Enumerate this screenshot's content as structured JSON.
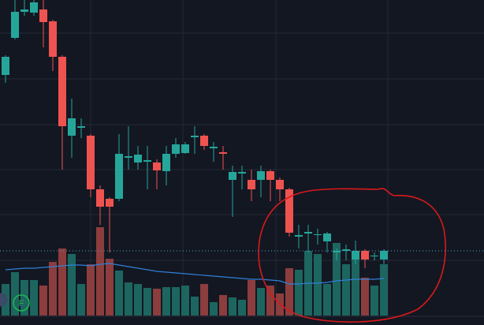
{
  "chart_data": {
    "type": "candlestick",
    "open": [
      305,
      352,
      385,
      384,
      388,
      373,
      328,
      228,
      238,
      228,
      160,
      148,
      148,
      200,
      194,
      195,
      194,
      183,
      205,
      206,
      226,
      228,
      212,
      207,
      172,
      180,
      172,
      172,
      183,
      172,
      160,
      100,
      104,
      102,
      94,
      80,
      82,
      71,
      82,
      75,
      71
    ],
    "high": [
      330,
      400,
      400,
      400,
      400,
      375,
      330,
      275,
      250,
      230,
      165,
      150,
      230,
      240,
      215,
      215,
      198,
      215,
      225,
      220,
      240,
      230,
      220,
      215,
      190,
      190,
      185,
      190,
      185,
      175,
      162,
      115,
      115,
      110,
      106,
      85,
      90,
      95,
      84,
      80,
      84
    ],
    "low": [
      295,
      350,
      380,
      380,
      340,
      310,
      185,
      200,
      225,
      150,
      115,
      80,
      145,
      185,
      185,
      160,
      160,
      165,
      200,
      205,
      205,
      210,
      195,
      185,
      125,
      160,
      145,
      150,
      145,
      145,
      100,
      85,
      80,
      90,
      80,
      70,
      70,
      65,
      60,
      70,
      65
    ],
    "close": [
      328,
      385,
      388,
      397,
      372,
      328,
      240,
      250,
      240,
      160,
      138,
      138,
      205,
      202,
      204,
      197,
      184,
      205,
      217,
      217,
      228,
      215,
      214,
      205,
      182,
      182,
      160,
      183,
      172,
      160,
      105,
      102,
      106,
      103,
      104,
      82,
      84,
      82,
      71,
      76,
      82
    ],
    "volume": [
      40,
      55,
      45,
      45,
      38,
      68,
      85,
      78,
      40,
      65,
      112,
      72,
      57,
      42,
      40,
      35,
      34,
      36,
      36,
      38,
      24,
      40,
      17,
      26,
      23,
      20,
      45,
      35,
      38,
      28,
      60,
      58,
      82,
      78,
      40,
      92,
      65,
      80,
      48,
      38,
      65
    ],
    "volume_ma": [
      58,
      59,
      60,
      60,
      61,
      62,
      63,
      64,
      64,
      63,
      65,
      66,
      64,
      62,
      60,
      58,
      56,
      55,
      54,
      53,
      52,
      51,
      50,
      49,
      48,
      47,
      46,
      46,
      45,
      44,
      40,
      40,
      41,
      41,
      42,
      44,
      45,
      46,
      46,
      46,
      47
    ],
    "ylim": [
      0,
      400
    ],
    "volume_ylim": [
      0,
      400
    ],
    "price_line": 82,
    "up_color": "#26a69a",
    "down_color": "#ef5350",
    "up_volume_color": "#1d6660",
    "down_volume_color": "#8c3d3d",
    "ma_color": "#2f7fd8",
    "price_line_color": "#4fa3c7",
    "badge": "F"
  }
}
